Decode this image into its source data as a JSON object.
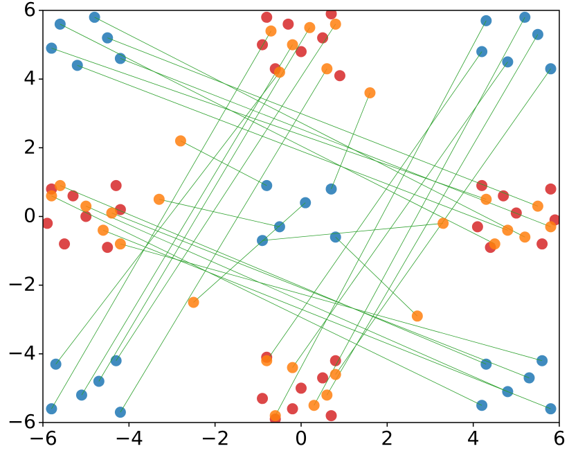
{
  "chart_data": {
    "type": "scatter",
    "xlim": [
      -6,
      6
    ],
    "ylim": [
      -6,
      6
    ],
    "xticks": [
      {
        "value": -6,
        "label": "−6"
      },
      {
        "value": -4,
        "label": "−4"
      },
      {
        "value": -2,
        "label": "−2"
      },
      0,
      2,
      4,
      6
    ],
    "yticks": [
      {
        "value": -6,
        "label": "−6"
      },
      {
        "value": -4,
        "label": "−4"
      },
      {
        "value": -2,
        "label": "−2"
      },
      0,
      2,
      4,
      6
    ],
    "links_color": "#2ca02c",
    "series": [
      {
        "color": "#d62728",
        "x": [
          -0.8,
          0.7,
          -0.6,
          0.9,
          0,
          -0.9,
          0.5,
          -0.3,
          -5.8,
          -4.3,
          -5.5,
          -4.5,
          -5,
          -5.9,
          -4.2,
          -5.3,
          4.2,
          5.8,
          4.4,
          5.6,
          5,
          4.1,
          5.9,
          4.7,
          -0.8,
          0.8,
          -0.6,
          0.7,
          0,
          -0.9,
          0.5,
          -0.2
        ],
        "y": [
          5.8,
          5.9,
          4.3,
          4.1,
          4.8,
          5.0,
          5.2,
          5.6,
          0.8,
          0.9,
          -0.8,
          -0.9,
          0,
          -0.2,
          0.2,
          0.6,
          0.9,
          0.8,
          -0.9,
          -0.8,
          0.1,
          -0.3,
          -0.1,
          0.6,
          -4.1,
          -4.2,
          -5.9,
          -5.8,
          -5,
          -5.3,
          -4.7,
          -5.6
        ]
      },
      {
        "color": "#1f77b4",
        "x": [
          -5.6,
          -4.5,
          -5.2,
          -4.2,
          -5.8,
          -4.8,
          4.3,
          5.5,
          4.8,
          5.8,
          4.2,
          5.2,
          -0.8,
          0.7,
          -0.5,
          0.8,
          0.1,
          -0.9,
          -5.7,
          -4.3,
          -5.1,
          -4.2,
          -5.8,
          -4.7,
          4.3,
          5.6,
          4.8,
          5.8,
          4.2,
          5.3
        ],
        "y": [
          5.6,
          5.2,
          4.4,
          4.6,
          4.9,
          5.8,
          5.7,
          5.3,
          4.5,
          4.3,
          4.8,
          5.8,
          0.9,
          0.8,
          -0.3,
          -0.6,
          0.4,
          -0.7,
          -4.3,
          -4.2,
          -5.2,
          -5.7,
          -5.6,
          -4.8,
          -4.3,
          -4.2,
          -5.1,
          -5.6,
          -5.5,
          -4.7
        ]
      },
      {
        "color": "#ff7f0e",
        "x": [
          4.5,
          5.5,
          4.8,
          5.8,
          4.3,
          5.2,
          -0.6,
          0.6,
          -0.2,
          0.8,
          -0.8,
          0.3,
          -2.8,
          1.6,
          -3.3,
          2.7,
          -2.5,
          3.3,
          -0.5,
          0.8,
          -0.2,
          0.6,
          -0.7,
          0.2,
          -5.6,
          -4.2,
          -5.0,
          -4.6,
          -5.8,
          -4.4
        ],
        "y": [
          -0.8,
          0.3,
          -0.4,
          -0.3,
          0.5,
          -0.6,
          -5.8,
          -5.2,
          -4.4,
          -4.6,
          -4.2,
          -5.5,
          2.2,
          3.6,
          0.5,
          -2.9,
          -2.5,
          -0.2,
          4.2,
          5.6,
          5.0,
          4.3,
          5.4,
          5.5,
          0.9,
          -0.8,
          0.3,
          -0.4,
          0.6,
          0.1
        ]
      }
    ]
  }
}
